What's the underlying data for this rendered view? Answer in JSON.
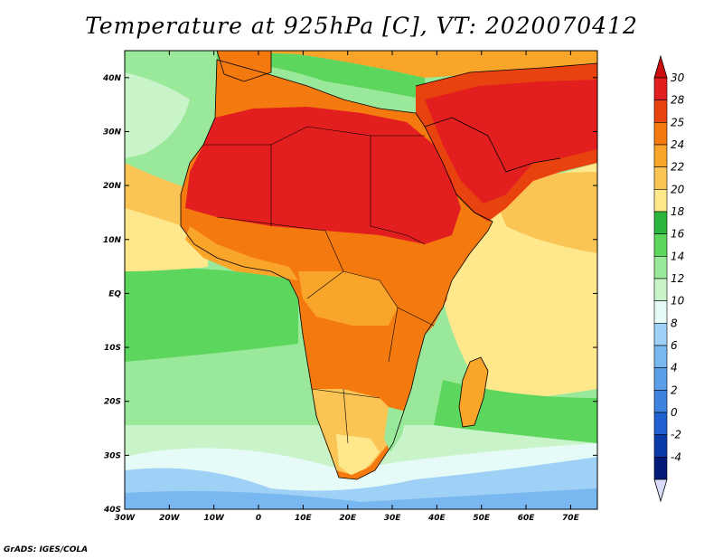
{
  "title": "Temperature at 925hPa [C], VT: 2020070412",
  "credit": "GrADS: IGES/COLA",
  "map": {
    "lon_range": [
      -30,
      76
    ],
    "lat_range": [
      -40,
      45
    ],
    "lon_ticks": [
      -30,
      -20,
      -10,
      0,
      10,
      20,
      30,
      40,
      50,
      60,
      70
    ],
    "lon_labels": [
      "30W",
      "20W",
      "10W",
      "0",
      "10E",
      "20E",
      "30E",
      "40E",
      "50E",
      "60E",
      "70E"
    ],
    "lat_ticks": [
      -40,
      -30,
      -20,
      -10,
      0,
      10,
      20,
      30,
      40
    ],
    "lat_labels": [
      "40S",
      "30S",
      "20S",
      "10S",
      "EQ",
      "10N",
      "20N",
      "30N",
      "40N"
    ]
  },
  "colorbar": {
    "levels": [
      "30",
      "28",
      "25",
      "24",
      "22",
      "20",
      "18",
      "16",
      "14",
      "12",
      "10",
      "8",
      "6",
      "4",
      "2",
      "0",
      "-2",
      "-4"
    ],
    "colors": [
      "#e31e1e",
      "#e8420f",
      "#f47a10",
      "#f9a52a",
      "#fbc556",
      "#ffe88c",
      "#2bb53c",
      "#5cd65c",
      "#9ae89a",
      "#c9f3c9",
      "#e6fbf7",
      "#9fd0f5",
      "#78b7ef",
      "#5a9ee8",
      "#3c84e0",
      "#2060d0",
      "#0a3aa8",
      "#041a78",
      "#0a0a50"
    ],
    "top_color": "#cc1010",
    "bottom_color": "#d8dcf8"
  }
}
